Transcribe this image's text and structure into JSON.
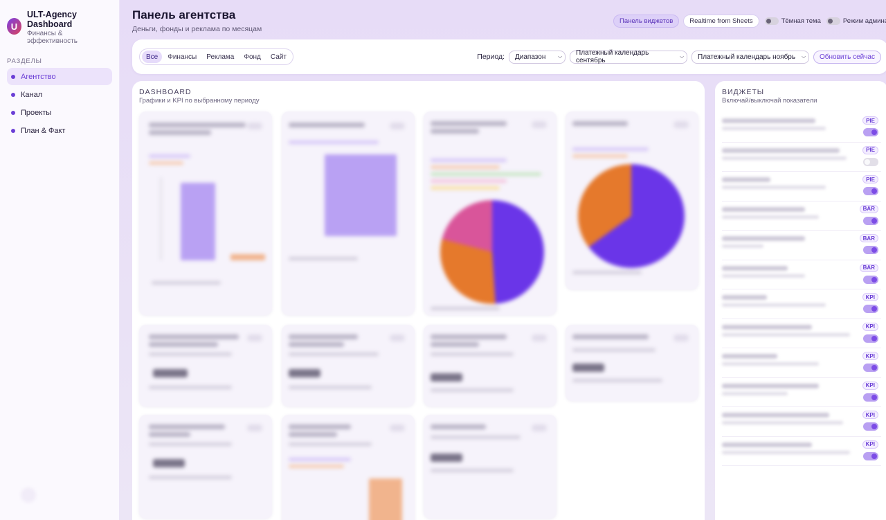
{
  "brand": {
    "logo_letter": "U",
    "title": "ULT-Agency Dashboard",
    "subtitle": "Финансы & эффективность"
  },
  "sidebar": {
    "section_label": "РАЗДЕЛЫ",
    "items": [
      {
        "label": "Агентство",
        "active": true
      },
      {
        "label": "Канал",
        "active": false
      },
      {
        "label": "Проекты",
        "active": false
      },
      {
        "label": "План & Факт",
        "active": false
      }
    ]
  },
  "header": {
    "title": "Панель агентства",
    "subtitle": "Деньги, фонды и реклама по месяцам",
    "widget_panel_button": "Панель виджетов",
    "realtime_button": "Realtime from Sheets",
    "dark_theme_label": "Тёмная тема",
    "admin_mode_label": "Режим админа"
  },
  "filters": {
    "tabs": [
      {
        "label": "Все",
        "active": true
      },
      {
        "label": "Финансы",
        "active": false
      },
      {
        "label": "Реклама",
        "active": false
      },
      {
        "label": "Фонд",
        "active": false
      },
      {
        "label": "Сайт",
        "active": false
      }
    ],
    "period_label": "Период:",
    "period_value": "Диапазон",
    "from_value": "Платежный календарь сентябрь",
    "to_value": "Платежный календарь ноябрь",
    "refresh_button": "Обновить сейчас"
  },
  "dashboard": {
    "title": "DASHBOARD",
    "subtitle": "Графики и KPI по выбранному периоду"
  },
  "widgets_panel": {
    "title": "ВИДЖЕТЫ",
    "subtitle": "Включай/выключай показатели",
    "items": [
      {
        "type": "PIE",
        "enabled": true
      },
      {
        "type": "PIE",
        "enabled": false
      },
      {
        "type": "PIE",
        "enabled": true
      },
      {
        "type": "BAR",
        "enabled": true
      },
      {
        "type": "BAR",
        "enabled": true
      },
      {
        "type": "BAR",
        "enabled": true
      },
      {
        "type": "KPI",
        "enabled": true
      },
      {
        "type": "KPI",
        "enabled": true
      },
      {
        "type": "KPI",
        "enabled": true
      },
      {
        "type": "KPI",
        "enabled": true
      },
      {
        "type": "KPI",
        "enabled": true
      },
      {
        "type": "KPI",
        "enabled": true
      }
    ]
  },
  "colors": {
    "accent": "#6b3fd6",
    "pie_purple": "#6a35e8",
    "pie_orange": "#e5792c",
    "pie_pink": "#d9559a",
    "bar_purple": "#b9a1f3",
    "bar_orange": "#f1b48d"
  }
}
